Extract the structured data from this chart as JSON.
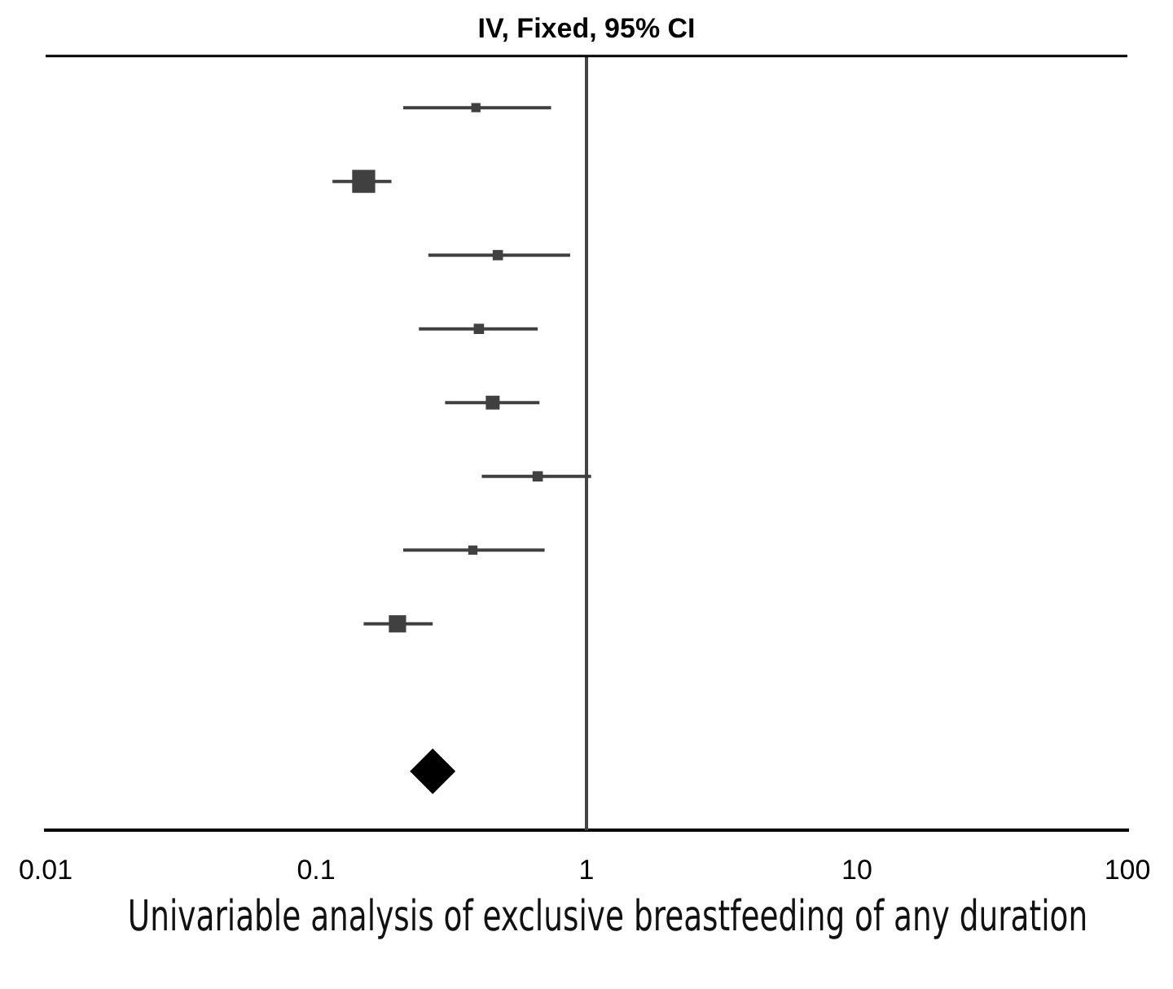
{
  "chart_data": {
    "type": "scatter",
    "title": "IV, Fixed, 95% CI",
    "orientation": "horizontal",
    "categories": [
      null,
      null,
      null,
      null,
      null,
      null,
      null,
      null,
      null,
      null
    ],
    "series": [
      {
        "color": "#404040",
        "marker": "square",
        "values": [
          0.39,
          0.15,
          0.47,
          0.4,
          0.45,
          0.66,
          0.38,
          0.2,
          null,
          null
        ],
        "sizes": [
          0.16,
          1,
          0.2,
          0.2,
          0.36,
          0.2,
          0.16,
          0.56,
          null,
          null
        ],
        "errors": [
          [
            0.21,
            0.74
          ],
          [
            0.115,
            0.19
          ],
          [
            0.26,
            0.87
          ],
          [
            0.24,
            0.66
          ],
          [
            0.3,
            0.67
          ],
          [
            0.41,
            1.04
          ],
          [
            0.21,
            0.7
          ],
          [
            0.15,
            0.27
          ],
          null,
          null
        ]
      },
      {
        "color": "#000000",
        "marker": "diamond",
        "values": [
          null,
          null,
          null,
          null,
          null,
          null,
          null,
          null,
          null,
          0.27
        ],
        "errors": [
          null,
          null,
          null,
          null,
          null,
          null,
          null,
          null,
          null,
          [
            0.23,
            0.31
          ]
        ]
      }
    ],
    "log": "x",
    "xlim": [
      0.01,
      100
    ],
    "xticks": [
      0.01,
      0.1,
      1,
      10,
      100
    ],
    "grid": false,
    "legend": false,
    "ref_lines": [
      {
        "axis": "x",
        "value": 1
      }
    ],
    "annotations": [
      "Univariable analysis of exclusive breastfeeding of any duration"
    ]
  }
}
